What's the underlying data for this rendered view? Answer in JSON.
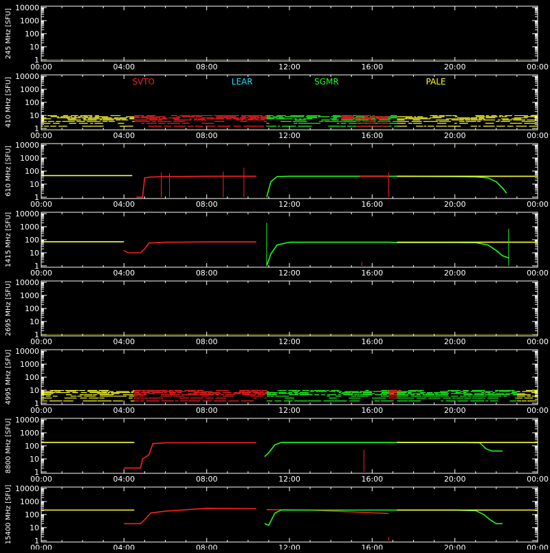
{
  "chart_data": {
    "type": "line",
    "x_ticks": [
      "00:00",
      "04:00",
      "08:00",
      "12:00",
      "16:00",
      "20:00",
      "00:00"
    ],
    "x_range_hours": [
      0,
      24
    ],
    "y_scale": "log",
    "y_ticks": [
      "10000",
      "1000",
      "100",
      "10",
      "1"
    ],
    "y_range": [
      1,
      10000
    ],
    "unit": "[SFU]",
    "legend": [
      {
        "name": "SVTO",
        "color": "#ff2020"
      },
      {
        "name": "LEAR",
        "color": "#20e0ff"
      },
      {
        "name": "SGMR",
        "color": "#20ff20"
      },
      {
        "name": "PALE",
        "color": "#ffff30"
      }
    ],
    "panels": [
      {
        "label": "245 MHz",
        "baseline": 1,
        "segments": []
      },
      {
        "label": "410 MHz",
        "noisy": true,
        "baseline": 5,
        "segments": [
          {
            "color": "#ffff30",
            "x": [
              0,
              4.5
            ]
          },
          {
            "color": "#ff2020",
            "x": [
              4.5,
              10.9
            ]
          },
          {
            "color": "#20ff20",
            "x": [
              10.9,
              17.2
            ]
          },
          {
            "color": "#ff2020",
            "x": [
              14.5,
              16.8
            ]
          },
          {
            "color": "#ffff30",
            "x": [
              17.2,
              24
            ]
          }
        ]
      },
      {
        "label": "610 MHz",
        "segments": [
          {
            "color": "#ffff30",
            "pts": [
              [
                0,
                45
              ],
              [
                4.4,
                45
              ]
            ]
          },
          {
            "color": "#ff2020",
            "pts": [
              [
                4.6,
                1
              ],
              [
                4.9,
                1
              ],
              [
                5.0,
                30
              ],
              [
                5.3,
                35
              ],
              [
                6,
                38
              ],
              [
                8,
                40
              ],
              [
                10.4,
                40
              ]
            ]
          },
          {
            "color": "#20ff20",
            "pts": [
              [
                10.9,
                1
              ],
              [
                11.1,
                15
              ],
              [
                11.4,
                38
              ],
              [
                12,
                40
              ],
              [
                16.8,
                40
              ],
              [
                17.2,
                40
              ],
              [
                20,
                38
              ],
              [
                21,
                36
              ],
              [
                21.6,
                30
              ],
              [
                22,
                15
              ],
              [
                22.3,
                5
              ],
              [
                22.5,
                2
              ]
            ]
          },
          {
            "color": "#ffff30",
            "pts": [
              [
                17.2,
                40
              ],
              [
                24,
                40
              ]
            ]
          },
          {
            "color": "#ff2020",
            "pts": [
              [
                15.4,
                40
              ],
              [
                16.8,
                40
              ]
            ]
          }
        ],
        "spikes": [
          {
            "color": "#ff2020",
            "x": 5.8,
            "y": 80
          },
          {
            "color": "#ff2020",
            "x": 6.2,
            "y": 70
          },
          {
            "color": "#ff2020",
            "x": 8.8,
            "y": 90
          },
          {
            "color": "#ff2020",
            "x": 9.8,
            "y": 180
          },
          {
            "color": "#ff2020",
            "x": 16.8,
            "y": 80
          }
        ]
      },
      {
        "label": "1415 MHz",
        "segments": [
          {
            "color": "#ffff30",
            "pts": [
              [
                0,
                70
              ],
              [
                4.0,
                70
              ]
            ]
          },
          {
            "color": "#ff2020",
            "pts": [
              [
                4.0,
                15
              ],
              [
                4.2,
                10
              ],
              [
                4.8,
                10
              ],
              [
                5.0,
                20
              ],
              [
                5.2,
                55
              ],
              [
                6,
                65
              ],
              [
                8,
                68
              ],
              [
                10.4,
                68
              ]
            ]
          },
          {
            "color": "#20ff20",
            "pts": [
              [
                10.9,
                1
              ],
              [
                11.1,
                8
              ],
              [
                11.4,
                40
              ],
              [
                12,
                65
              ],
              [
                16.8,
                65
              ],
              [
                17.2,
                62
              ],
              [
                20,
                62
              ],
              [
                21,
                60
              ],
              [
                21.6,
                40
              ],
              [
                22,
                15
              ],
              [
                22.3,
                6
              ],
              [
                22.6,
                4
              ]
            ]
          },
          {
            "color": "#ffff30",
            "pts": [
              [
                17.2,
                65
              ],
              [
                24,
                65
              ]
            ]
          }
        ],
        "spikes": [
          {
            "color": "#20ff20",
            "x": 10.9,
            "y": 2000
          },
          {
            "color": "#ff2020",
            "x": 15.5,
            "y": 2
          },
          {
            "color": "#20ff20",
            "x": 22.6,
            "y": 700
          }
        ]
      },
      {
        "label": "2695 MHz",
        "baseline": 1,
        "segments": []
      },
      {
        "label": "4995 MHz",
        "noisy": true,
        "baseline": 4,
        "segments": [
          {
            "color": "#ffff30",
            "x": [
              0,
              4.5
            ]
          },
          {
            "color": "#ff2020",
            "x": [
              4.5,
              10.9
            ]
          },
          {
            "color": "#20ff20",
            "x": [
              10.9,
              17.2
            ]
          },
          {
            "color": "#ff2020",
            "x": [
              16.8,
              17.4
            ]
          },
          {
            "color": "#20ff20",
            "x": [
              17.2,
              23
            ]
          },
          {
            "color": "#ffff30",
            "x": [
              23,
              24
            ]
          }
        ]
      },
      {
        "label": "8800 MHz",
        "segments": [
          {
            "color": "#ffff30",
            "pts": [
              [
                0,
                180
              ],
              [
                4.5,
                180
              ]
            ]
          },
          {
            "color": "#ff2020",
            "pts": [
              [
                4.0,
                2
              ],
              [
                4.8,
                2
              ],
              [
                4.9,
                10
              ],
              [
                5.2,
                20
              ],
              [
                5.4,
                150
              ],
              [
                6,
                170
              ],
              [
                8,
                175
              ],
              [
                10.4,
                175
              ]
            ]
          },
          {
            "color": "#20ff20",
            "pts": [
              [
                10.8,
                15
              ],
              [
                11.0,
                30
              ],
              [
                11.3,
                120
              ],
              [
                11.6,
                180
              ],
              [
                16.8,
                180
              ],
              [
                17.2,
                180
              ],
              [
                20,
                180
              ],
              [
                21.2,
                170
              ],
              [
                21.5,
                60
              ],
              [
                21.8,
                40
              ],
              [
                22.3,
                40
              ]
            ]
          },
          {
            "color": "#ffff30",
            "pts": [
              [
                17.2,
                180
              ],
              [
                24,
                180
              ]
            ]
          }
        ],
        "spikes": [
          {
            "color": "#20ff20",
            "x": 10.8,
            "y": 1
          },
          {
            "color": "#ff2020",
            "x": 15.6,
            "y": 50
          }
        ]
      },
      {
        "label": "15400 MHz",
        "segments": [
          {
            "color": "#ffff30",
            "pts": [
              [
                0,
                220
              ],
              [
                4.5,
                220
              ]
            ]
          },
          {
            "color": "#ff2020",
            "pts": [
              [
                4.0,
                20
              ],
              [
                4.8,
                20
              ],
              [
                5.0,
                40
              ],
              [
                5.3,
                130
              ],
              [
                6,
                180
              ],
              [
                8,
                300
              ],
              [
                10.4,
                280
              ]
            ]
          },
          {
            "color": "#ff2020",
            "pts": [
              [
                10.9,
                240
              ],
              [
                13,
                220
              ],
              [
                16.8,
                120
              ]
            ]
          },
          {
            "color": "#20ff20",
            "pts": [
              [
                10.8,
                20
              ],
              [
                11.0,
                15
              ],
              [
                11.3,
                130
              ],
              [
                11.6,
                220
              ],
              [
                17.2,
                220
              ],
              [
                20,
                220
              ],
              [
                21,
                200
              ],
              [
                21.4,
                100
              ],
              [
                21.7,
                40
              ],
              [
                22.0,
                20
              ],
              [
                22.3,
                20
              ]
            ]
          },
          {
            "color": "#ffff30",
            "pts": [
              [
                17.2,
                220
              ],
              [
                24,
                220
              ]
            ]
          }
        ],
        "spikes": [
          {
            "color": "#20ff20",
            "x": 10.8,
            "y": 1
          },
          {
            "color": "#ff2020",
            "x": 16.8,
            "y": 2
          }
        ]
      }
    ]
  }
}
